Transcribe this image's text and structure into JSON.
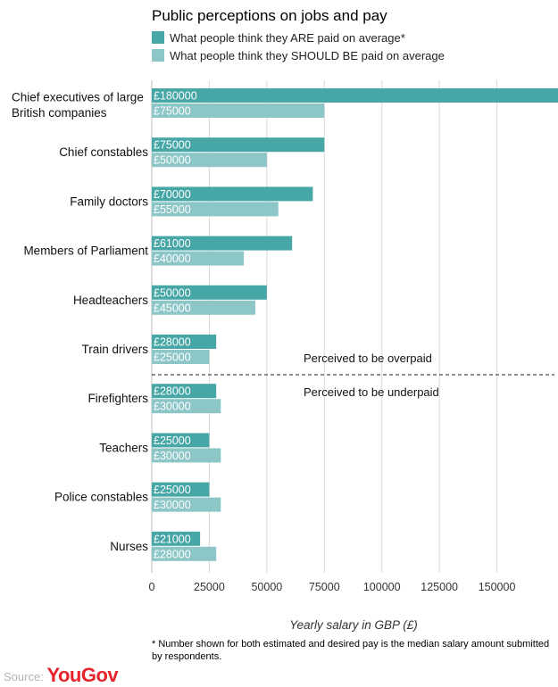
{
  "chart_data": {
    "type": "bar",
    "orientation": "horizontal",
    "title": "Public perceptions on jobs and pay",
    "categories": [
      "Chief executives of large British companies",
      "Chief constables",
      "Family doctors",
      "Members of Parliament",
      "Headteachers",
      "Train drivers",
      "Firefighters",
      "Teachers",
      "Police constables",
      "Nurses"
    ],
    "category_lines": [
      [
        "Chief executives of large",
        "British companies"
      ],
      [
        "Chief constables"
      ],
      [
        "Family doctors"
      ],
      [
        "Members of Parliament"
      ],
      [
        "Headteachers"
      ],
      [
        "Train drivers"
      ],
      [
        "Firefighters"
      ],
      [
        "Teachers"
      ],
      [
        "Police constables"
      ],
      [
        "Nurses"
      ]
    ],
    "series": [
      {
        "name": "What people think they ARE paid on average*",
        "color": "#47a6a6",
        "values": [
          180000,
          75000,
          70000,
          61000,
          50000,
          28000,
          28000,
          25000,
          25000,
          21000
        ],
        "labels": [
          "£180000",
          "£75000",
          "£70000",
          "£61000",
          "£50000",
          "£28000",
          "£28000",
          "£25000",
          "£25000",
          "£21000"
        ]
      },
      {
        "name": "What people think they SHOULD BE paid on average",
        "color": "#8cc6c6",
        "values": [
          75000,
          50000,
          55000,
          40000,
          45000,
          25000,
          30000,
          30000,
          30000,
          28000
        ],
        "labels": [
          "£75000",
          "£50000",
          "£55000",
          "£40000",
          "£45000",
          "£25000",
          "£30000",
          "£30000",
          "£30000",
          "£28000"
        ]
      }
    ],
    "xlabel": "Yearly salary in GBP (£)",
    "xlim": [
      0,
      175000
    ],
    "xticks": [
      0,
      25000,
      50000,
      75000,
      100000,
      125000,
      150000
    ],
    "xtick_labels": [
      "0",
      "25000",
      "50000",
      "75000",
      "100000",
      "125000",
      "150000"
    ],
    "grid": true,
    "legend_position": "top-left",
    "annotations": [
      "Perceived to be overpaid",
      "Perceived to be underpaid"
    ],
    "divider_after_category": "Train drivers"
  },
  "footnote": "* Number shown for both estimated and desired pay is the median salary amount submitted by respondents.",
  "source_label": "Source:",
  "brand": "YouGov"
}
